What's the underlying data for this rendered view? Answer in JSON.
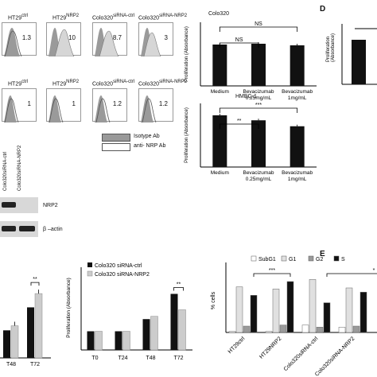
{
  "panel_letters": {
    "d": "D",
    "e": "E"
  },
  "flow": {
    "row1_titles": [
      "HT29",
      "HT29",
      "Colo320",
      "Colo320"
    ],
    "row1_sups": [
      "ctrl",
      "NRP2",
      "siRNA-ctrl",
      "siRNA-NRP2"
    ],
    "row1_values": [
      "1.3",
      "10",
      "8.7",
      "3"
    ],
    "row2_titles": [
      "HT29",
      "HT29",
      "Colo320",
      "Colo320"
    ],
    "row2_sups": [
      "ctrl",
      "NRP2",
      "siRNA-ctrl",
      "siRNA-NRP2"
    ],
    "row2_values": [
      "1",
      "1",
      "1.2",
      "1.2"
    ],
    "legend_isotype": "Isotype  Ab",
    "legend_anti": "anti- NRP Ab"
  },
  "blot": {
    "lane1": "Colo320siRNA-ctrl",
    "lane2": "Colo320siRNA-NRP2",
    "row1": "NRP2",
    "row2": "β –actin"
  },
  "colors": {
    "black_bar": "#111111",
    "gray_bar": "#cccccc",
    "dark_gray": "#444444"
  },
  "chart_data": [
    {
      "type": "bar",
      "title": "Colo320",
      "ylabel": "Proliferation (Absorbance)",
      "categories": [
        "Medium",
        "Bevacizumab 0.25mg/mL",
        "Bevacizumab 1mg/mL"
      ],
      "values": [
        0.52,
        0.53,
        0.51
      ],
      "ylim": [
        0,
        0.8
      ],
      "annotations": [
        "NS",
        "NS"
      ]
    },
    {
      "type": "bar",
      "title": "HMEC-1",
      "ylabel": "Proliferation (Absorbance)",
      "categories": [
        "Medium",
        "Bevacizumab 0.25mg/mL",
        "Bevacizumab 1mg/mL"
      ],
      "values": [
        0.26,
        0.235,
        0.205
      ],
      "ylim": [
        0,
        0.32
      ],
      "annotations": [
        "***",
        "**"
      ]
    },
    {
      "type": "bar",
      "title": "",
      "ylabel": "Proliferation (Absorbance)",
      "categories": [
        "T48",
        "T72"
      ],
      "series": [
        {
          "name": "",
          "values": [
            0.3,
            0.55
          ]
        },
        {
          "name": "",
          "values": [
            0.35,
            0.7
          ]
        }
      ],
      "ylim": [
        0,
        0.9
      ],
      "annotations": [
        "**"
      ]
    },
    {
      "type": "bar",
      "title": "",
      "ylabel": "Proliferation (Absorbance)",
      "categories": [
        "T0",
        "T24",
        "T48",
        "T72"
      ],
      "series": [
        {
          "name": "Colo320 siRNA-ctrl",
          "values": [
            0.2,
            0.2,
            0.33,
            0.6
          ]
        },
        {
          "name": "Colo320 siRNA-NRP2",
          "values": [
            0.2,
            0.2,
            0.36,
            0.43
          ]
        }
      ],
      "ylim": [
        0,
        0.8
      ],
      "annotations": [
        "**"
      ]
    },
    {
      "type": "bar",
      "title": "",
      "ylabel": "% cells",
      "categories": [
        "HT29ctrl",
        "HT29NRP2",
        "Colo320siRNA-ctrl",
        "Colo320siRNA-NRP2"
      ],
      "series": [
        {
          "name": "SubG1",
          "values": [
            1,
            1,
            7,
            5
          ]
        },
        {
          "name": "G1",
          "values": [
            43,
            41,
            50,
            42
          ]
        },
        {
          "name": "G2",
          "values": [
            6,
            7,
            5,
            6
          ]
        },
        {
          "name": "S",
          "values": [
            35,
            48,
            28,
            38
          ]
        }
      ],
      "ylim": [
        0,
        60
      ],
      "annotations": [
        "***",
        "*"
      ]
    }
  ]
}
